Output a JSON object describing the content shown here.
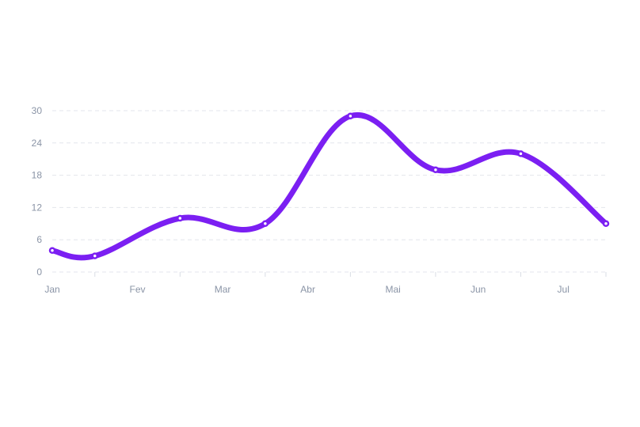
{
  "chart_data": {
    "type": "line",
    "title": "",
    "xlabel": "",
    "ylabel": "",
    "x_tick_labels": [
      "Jan",
      "Fev",
      "Mar",
      "Abr",
      "Mai",
      "Jun",
      "Jul"
    ],
    "y_ticks": [
      0,
      6,
      12,
      18,
      24,
      30
    ],
    "ylim": [
      0,
      30
    ],
    "grid": true,
    "smooth": true,
    "series": [
      {
        "color": "#7b1ff2",
        "points": [
          {
            "x": 0.0,
            "y": 4
          },
          {
            "x": 0.5,
            "y": 3
          },
          {
            "x": 1.5,
            "y": 10
          },
          {
            "x": 2.5,
            "y": 9
          },
          {
            "x": 3.5,
            "y": 29
          },
          {
            "x": 4.5,
            "y": 19
          },
          {
            "x": 5.5,
            "y": 22
          },
          {
            "x": 6.5,
            "y": 9
          }
        ]
      }
    ]
  }
}
